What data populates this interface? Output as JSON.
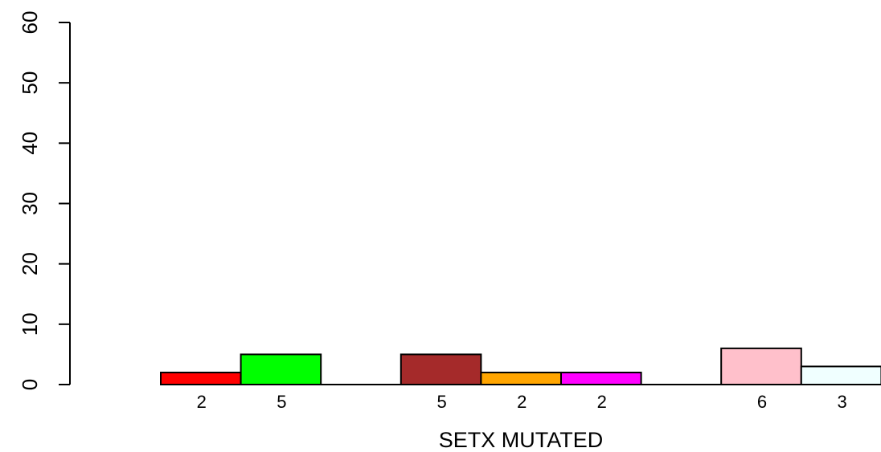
{
  "chart_data": {
    "type": "bar",
    "xlabel": "SETX MUTATED",
    "ylim": [
      0,
      60
    ],
    "yticks": [
      0,
      10,
      20,
      30,
      40,
      50,
      60
    ],
    "grid": false,
    "bars": [
      {
        "slot": 0,
        "value": 2,
        "label": "2",
        "color": "#ff0000"
      },
      {
        "slot": 1,
        "value": 5,
        "label": "5",
        "color": "#00ff00"
      },
      {
        "slot": 3,
        "value": 5,
        "label": "5",
        "color": "#a52a2a"
      },
      {
        "slot": 4,
        "value": 2,
        "label": "2",
        "color": "#ffa500"
      },
      {
        "slot": 5,
        "value": 2,
        "label": "2",
        "color": "#ff00ff"
      },
      {
        "slot": 7,
        "value": 6,
        "label": "6",
        "color": "#ffc0cb"
      },
      {
        "slot": 8,
        "value": 3,
        "label": "3",
        "color": "#f0ffff"
      }
    ]
  }
}
